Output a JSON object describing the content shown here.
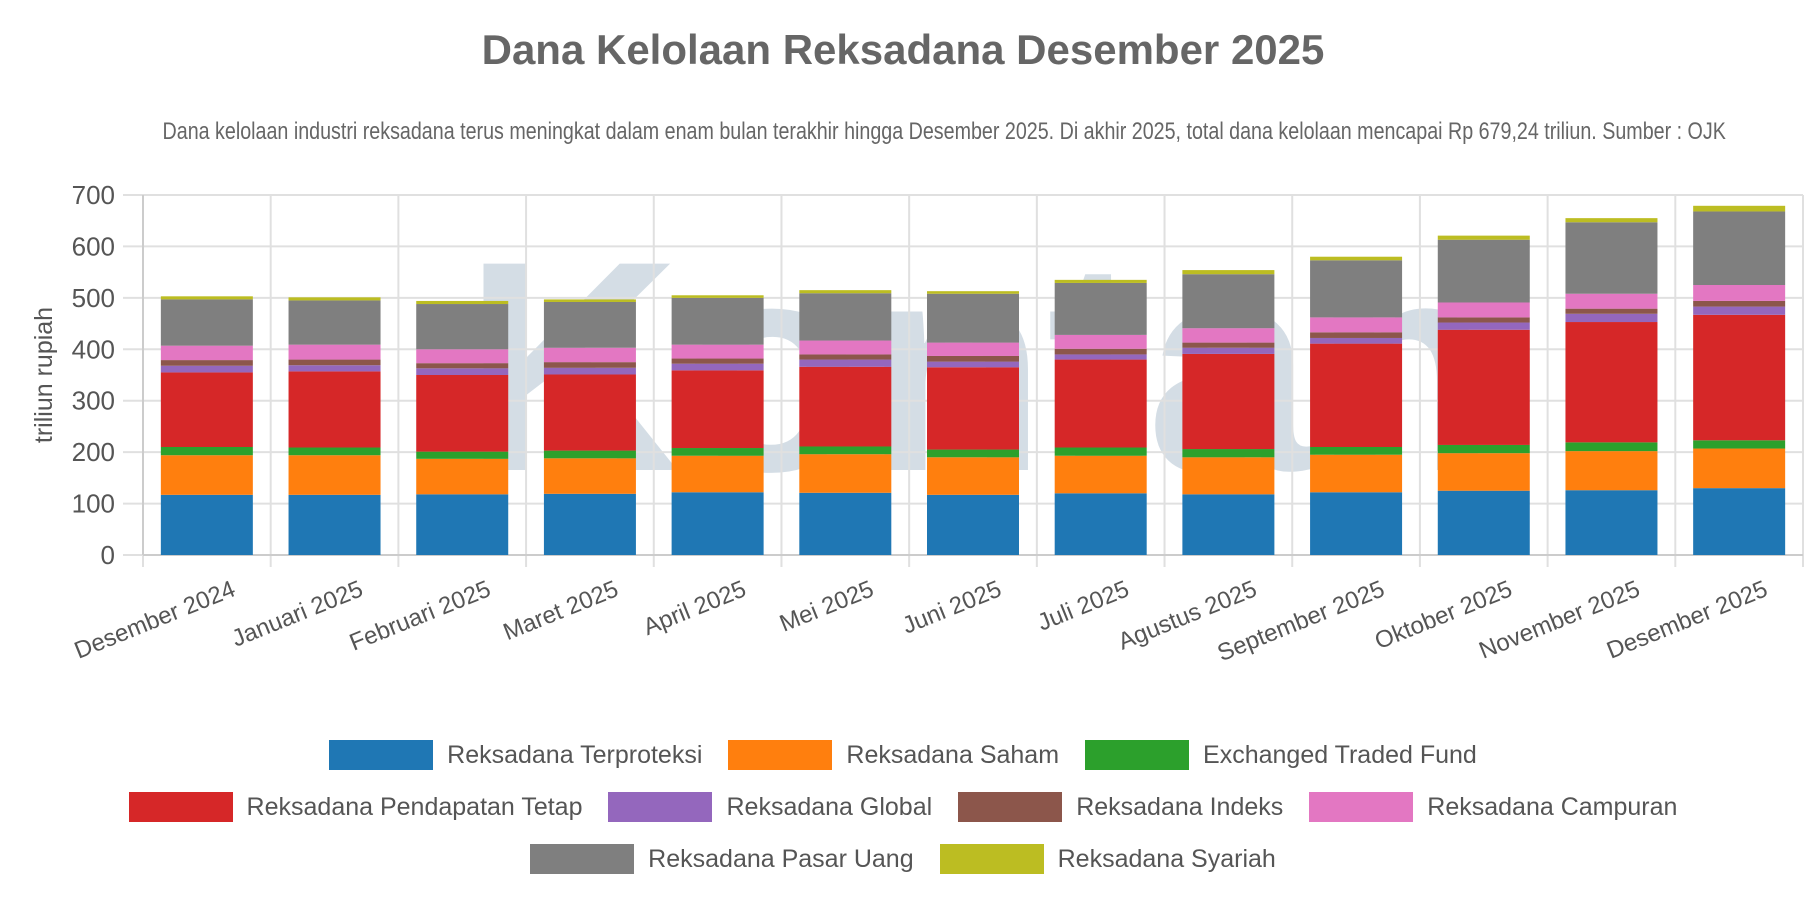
{
  "watermark": "Kontan",
  "chart_data": {
    "type": "bar",
    "stacked": true,
    "title": "Dana Kelolaan Reksadana Desember 2025",
    "subtitle": "Dana kelolaan industri reksadana terus meningkat dalam enam bulan terakhir hingga Desember 2025. Di akhir 2025, total dana kelolaan mencapai Rp 679,24 triliun. Sumber : OJK",
    "xlabel": "",
    "ylabel": "triliun rupiah",
    "ylim": [
      0,
      700
    ],
    "yticks": [
      0,
      100,
      200,
      300,
      400,
      500,
      600,
      700
    ],
    "grid": true,
    "legend_position": "bottom",
    "categories": [
      "Desember 2024",
      "Januari 2025",
      "Februari 2025",
      "Maret 2025",
      "April 2025",
      "Mei 2025",
      "Juni 2025",
      "Juli 2025",
      "Agustus 2025",
      "September 2025",
      "Oktober 2025",
      "November 2025",
      "Desember 2025"
    ],
    "series": [
      {
        "name": "Reksadana Terproteksi",
        "color": "#1f77b4",
        "values": [
          117,
          117,
          118,
          119,
          122,
          121,
          117,
          120,
          118,
          122,
          125,
          126,
          130
        ]
      },
      {
        "name": "Reksadana Saham",
        "color": "#ff7f0e",
        "values": [
          77,
          77,
          69,
          69,
          71,
          75,
          73,
          73,
          72,
          73,
          73,
          76,
          77
        ]
      },
      {
        "name": "Exchanged Traded Fund",
        "color": "#2ca02c",
        "values": [
          16,
          15,
          14,
          15,
          15,
          15,
          15,
          16,
          16,
          15,
          16,
          17,
          16
        ]
      },
      {
        "name": "Reksadana Pendapatan Tetap",
        "color": "#d62728",
        "values": [
          145,
          148,
          149,
          148,
          151,
          155,
          160,
          171,
          185,
          201,
          224,
          234,
          244
        ]
      },
      {
        "name": "Reksadana Global",
        "color": "#9467bd",
        "values": [
          13,
          12,
          13,
          13,
          13,
          14,
          11,
          10,
          12,
          11,
          14,
          16,
          16
        ]
      },
      {
        "name": "Reksadana Indeks",
        "color": "#8c564b",
        "values": [
          11,
          11,
          10,
          11,
          10,
          10,
          11,
          11,
          10,
          11,
          10,
          10,
          11
        ]
      },
      {
        "name": "Reksadana Campuran",
        "color": "#e377c2",
        "values": [
          28,
          29,
          27,
          28,
          27,
          27,
          26,
          27,
          28,
          29,
          29,
          29,
          31
        ]
      },
      {
        "name": "Reksadana Pasar Uang",
        "color": "#7f7f7f",
        "values": [
          90,
          86,
          88,
          89,
          91,
          92,
          95,
          101,
          105,
          111,
          122,
          139,
          143
        ]
      },
      {
        "name": "Reksadana Syariah",
        "color": "#bcbd22",
        "values": [
          6,
          6,
          6,
          5,
          5,
          6,
          5,
          6,
          8,
          7,
          8,
          8,
          11
        ]
      }
    ]
  }
}
